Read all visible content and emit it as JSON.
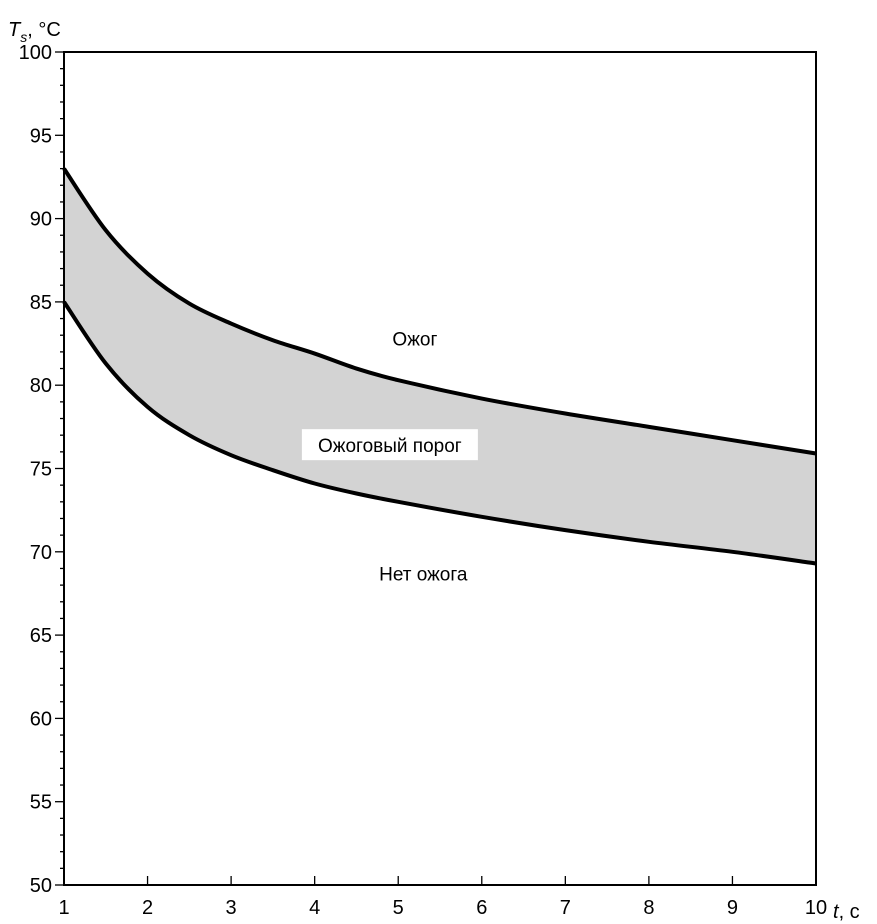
{
  "chart_data": {
    "type": "area",
    "title": "",
    "ylabel": {
      "symbol": "T",
      "subscript": "s",
      "unit": ", °C"
    },
    "xlabel": {
      "symbol": "t",
      "unit": ", с"
    },
    "xlim": [
      1,
      10
    ],
    "ylim": [
      50,
      100
    ],
    "x_ticks": [
      1,
      2,
      3,
      4,
      5,
      6,
      7,
      8,
      9,
      10
    ],
    "y_ticks": [
      50,
      55,
      60,
      65,
      70,
      75,
      80,
      85,
      90,
      95,
      100
    ],
    "grid": false,
    "band_fill": "#d3d3d3",
    "line_color": "#000000",
    "series": [
      {
        "id": "upper",
        "x": [
          1,
          1.5,
          2,
          2.5,
          3,
          3.5,
          4,
          4.5,
          5,
          6,
          7,
          8,
          9,
          10
        ],
        "y": [
          93.0,
          89.3,
          86.7,
          84.9,
          83.7,
          82.7,
          81.9,
          81.0,
          80.3,
          79.2,
          78.3,
          77.5,
          76.7,
          75.9
        ]
      },
      {
        "id": "lower",
        "x": [
          1,
          1.5,
          2,
          2.5,
          3,
          3.5,
          4,
          4.5,
          5,
          6,
          7,
          8,
          9,
          10
        ],
        "y": [
          85.0,
          81.3,
          78.7,
          77.0,
          75.8,
          74.9,
          74.1,
          73.5,
          73.0,
          72.1,
          71.3,
          70.6,
          70.0,
          69.3
        ]
      }
    ],
    "annotations": [
      {
        "id": "burn",
        "text": "Ожог",
        "x": 5.2,
        "y": 82.8
      },
      {
        "id": "threshold",
        "text": "Ожоговый порог",
        "x": 4.9,
        "y": 76.4,
        "boxed": true
      },
      {
        "id": "no-burn",
        "text": "Нет ожога",
        "x": 5.3,
        "y": 68.7
      }
    ]
  }
}
